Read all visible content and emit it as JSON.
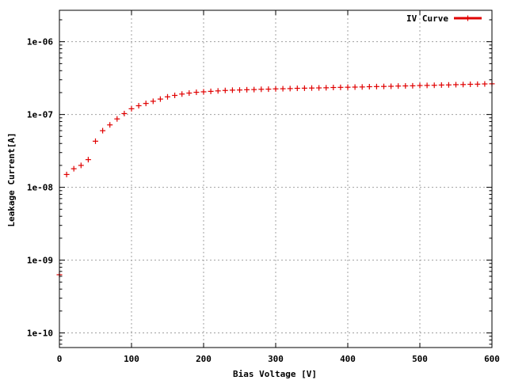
{
  "chart_data": {
    "type": "scatter",
    "xlabel": "Bias Voltage [V]",
    "ylabel": "Leakage Current[A]",
    "xlim": [
      0,
      600
    ],
    "ylim": [
      6.3e-11,
      2.7e-06
    ],
    "y_scale": "log",
    "grid": true,
    "legend_position": "top-right",
    "x_ticks": [
      0,
      100,
      200,
      300,
      400,
      500,
      600
    ],
    "x_tick_labels": [
      "0",
      "100",
      "200",
      "300",
      "400",
      "500",
      "600"
    ],
    "y_ticks": [
      1e-10,
      1e-09,
      1e-08,
      1e-07,
      1e-06
    ],
    "y_tick_labels": [
      "1e-10",
      "1e-09",
      "1e-08",
      "1e-07",
      "1e-06"
    ],
    "series": [
      {
        "name": "IV Curve",
        "color": "#e00000",
        "marker": "plus",
        "x": [
          0,
          10,
          20,
          30,
          40,
          50,
          60,
          70,
          80,
          90,
          100,
          110,
          120,
          130,
          140,
          150,
          160,
          170,
          180,
          190,
          200,
          210,
          220,
          230,
          240,
          250,
          260,
          270,
          280,
          290,
          300,
          310,
          320,
          330,
          340,
          350,
          360,
          370,
          380,
          390,
          400,
          410,
          420,
          430,
          440,
          450,
          460,
          470,
          480,
          490,
          500,
          510,
          520,
          530,
          540,
          550,
          560,
          570,
          580,
          590,
          600
        ],
        "y": [
          6.3e-10,
          1.5e-08,
          1.8e-08,
          2e-08,
          2.4e-08,
          4.3e-08,
          6e-08,
          7.2e-08,
          8.7e-08,
          1.03e-07,
          1.2e-07,
          1.32e-07,
          1.42e-07,
          1.52e-07,
          1.63e-07,
          1.75e-07,
          1.83e-07,
          1.91e-07,
          1.97e-07,
          2.02e-07,
          2.05e-07,
          2.08e-07,
          2.11e-07,
          2.14e-07,
          2.16e-07,
          2.17e-07,
          2.19e-07,
          2.2e-07,
          2.22e-07,
          2.23e-07,
          2.25e-07,
          2.26e-07,
          2.27e-07,
          2.29e-07,
          2.3e-07,
          2.31e-07,
          2.32e-07,
          2.33e-07,
          2.35e-07,
          2.36e-07,
          2.37e-07,
          2.38e-07,
          2.39e-07,
          2.41e-07,
          2.42e-07,
          2.43e-07,
          2.44e-07,
          2.46e-07,
          2.47e-07,
          2.48e-07,
          2.5e-07,
          2.51e-07,
          2.52e-07,
          2.54e-07,
          2.55e-07,
          2.57e-07,
          2.58e-07,
          2.6e-07,
          2.61e-07,
          2.63e-07,
          2.64e-07
        ]
      }
    ]
  }
}
